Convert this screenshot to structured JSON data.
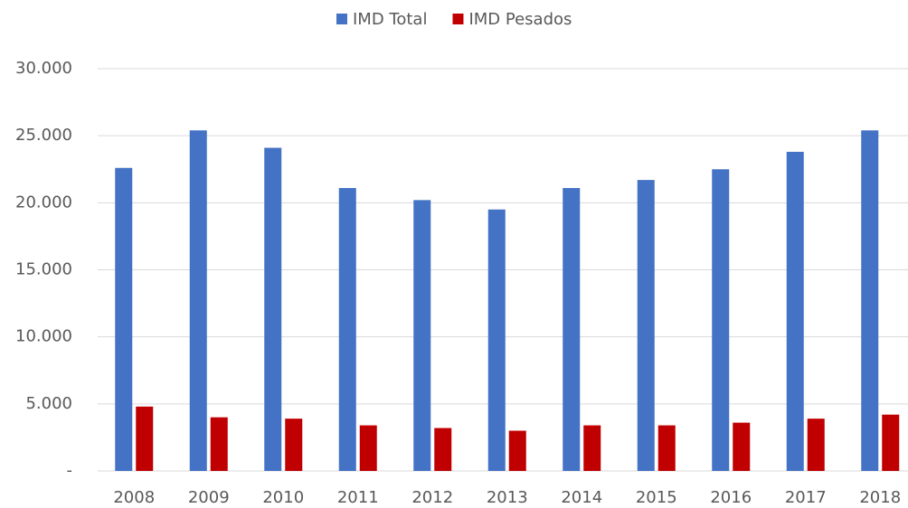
{
  "chart_data": {
    "type": "bar",
    "categories": [
      "2008",
      "2009",
      "2010",
      "2011",
      "2012",
      "2013",
      "2014",
      "2015",
      "2016",
      "2017",
      "2018"
    ],
    "series": [
      {
        "name": "IMD Total",
        "color": "#4472c4",
        "values": [
          22600,
          25400,
          24100,
          21100,
          20200,
          19500,
          21100,
          21700,
          22500,
          23800,
          25400
        ]
      },
      {
        "name": "IMD Pesados",
        "color": "#c00000",
        "values": [
          4800,
          4000,
          3900,
          3400,
          3200,
          3000,
          3400,
          3400,
          3600,
          3900,
          4200
        ]
      }
    ],
    "ylim": [
      0,
      30000
    ],
    "yticks": [
      {
        "value": 0,
        "label": "-"
      },
      {
        "value": 5000,
        "label": "5.000"
      },
      {
        "value": 10000,
        "label": "10.000"
      },
      {
        "value": 15000,
        "label": "15.000"
      },
      {
        "value": 20000,
        "label": "20.000"
      },
      {
        "value": 25000,
        "label": "25.000"
      },
      {
        "value": 30000,
        "label": "30.000"
      }
    ],
    "grid": true,
    "legend": "top"
  }
}
